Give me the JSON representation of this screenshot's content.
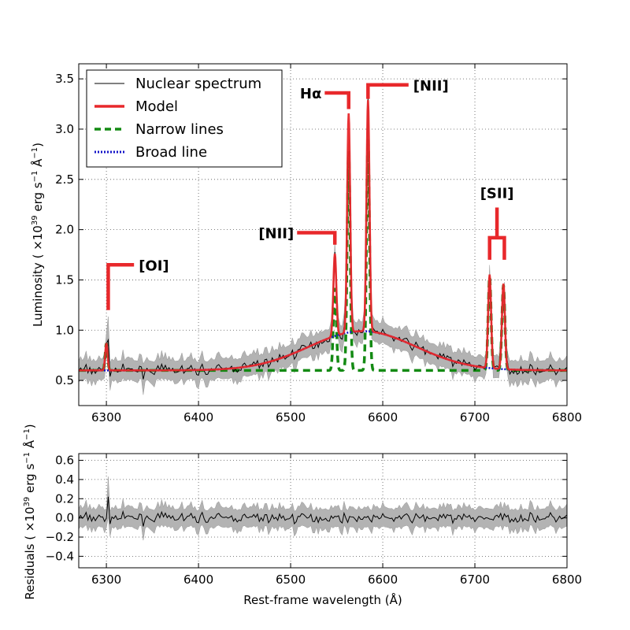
{
  "chart_data": [
    {
      "type": "line",
      "panel": "top",
      "ylabel_main": "Luminosity ( ×10",
      "ylabel_exp": "39",
      "ylabel_rest": " erg s",
      "ylabel_exp2": "−1",
      "ylabel_end": " Å",
      "ylabel_exp3": "−1",
      "ylabel_close": ")",
      "xlim": [
        6270,
        6800
      ],
      "ylim": [
        0.25,
        3.65
      ],
      "xticks": [
        6300,
        6400,
        6500,
        6600,
        6700,
        6800
      ],
      "yticks": [
        0.5,
        1.0,
        1.5,
        2.0,
        2.5,
        3.0,
        3.5
      ],
      "ytick_labels": [
        "0.5",
        "1.0",
        "1.5",
        "2.0",
        "2.5",
        "3.0",
        "3.5"
      ],
      "grid": true,
      "legend_position": "top-left",
      "legend": [
        {
          "label": "Nuclear spectrum",
          "style": "thin-black"
        },
        {
          "label": "Model",
          "style": "thick-red"
        },
        {
          "label": "Narrow lines",
          "style": "dashed-green"
        },
        {
          "label": "Broad line",
          "style": "dotted-blue"
        }
      ],
      "continuum": 0.6,
      "broad_line": {
        "center": 6578,
        "amplitude": 0.39,
        "sigma": 58
      },
      "narrow_lines": [
        {
          "name": "[OI]",
          "center": 6300,
          "amplitude": 0.27,
          "sigma": 1.3
        },
        {
          "name": "[NII]",
          "center": 6548,
          "amplitude": 0.82,
          "sigma": 1.6
        },
        {
          "name": "Hα",
          "center": 6563,
          "amplitude": 2.18,
          "sigma": 1.6
        },
        {
          "name": "[NII]",
          "center": 6584,
          "amplitude": 2.3,
          "sigma": 1.6
        },
        {
          "name": "[SII]",
          "center": 6716,
          "amplitude": 0.93,
          "sigma": 1.6
        },
        {
          "name": "[SII]",
          "center": 6731,
          "amplitude": 0.85,
          "sigma": 1.6
        }
      ],
      "noise_band_halfwidth": 0.1,
      "annotations": [
        {
          "text": "[OI]",
          "bracket": "single",
          "x": 6302,
          "y_low": 1.2,
          "y_high": 1.65,
          "elbow_to": 6330
        },
        {
          "text": "[NII]",
          "bracket": "single",
          "x": 6548,
          "y_low": 1.85,
          "y_high": 1.97,
          "elbow_to": 6507
        },
        {
          "text": "Hα",
          "bracket": "single",
          "x": 6563,
          "y_low": 3.2,
          "y_high": 3.36,
          "elbow_to": 6537
        },
        {
          "text": "[NII]",
          "bracket": "single",
          "x": 6584,
          "y_low": 3.3,
          "y_high": 3.44,
          "elbow_to": 6628
        },
        {
          "text": "[SII]",
          "bracket": "double",
          "x": 6716,
          "x2": 6732,
          "y_low": 1.7,
          "y_mid": 1.92,
          "y_high": 2.22
        }
      ]
    },
    {
      "type": "line",
      "panel": "bottom",
      "xlabel": "Rest-frame wavelength (Å)",
      "ylabel_main": "Residuals ( ×10",
      "ylabel_exp": "39",
      "ylabel_rest": " erg s",
      "ylabel_exp2": "−1",
      "ylabel_end": " Å",
      "ylabel_exp3": "−1",
      "ylabel_close": ")",
      "xlim": [
        6270,
        6800
      ],
      "ylim": [
        -0.52,
        0.67
      ],
      "xticks": [
        6300,
        6400,
        6500,
        6600,
        6700,
        6800
      ],
      "xtick_labels": [
        "6300",
        "6400",
        "6500",
        "6600",
        "6700",
        "6800"
      ],
      "yticks": [
        -0.4,
        -0.2,
        0.0,
        0.2,
        0.4,
        0.6
      ],
      "ytick_labels": [
        "−0.4",
        "−0.2",
        "0.0",
        "0.2",
        "0.4",
        "0.6"
      ],
      "grid": true,
      "noise_band_halfwidth": 0.1,
      "residual_spike": {
        "x": 6302,
        "value": 0.22
      }
    }
  ],
  "colors": {
    "spectrum": "#000000",
    "model": "#e8282b",
    "narrow": "#138a13",
    "broad": "#1515c8",
    "band": "#b3b3b3",
    "grid": "#555555"
  }
}
